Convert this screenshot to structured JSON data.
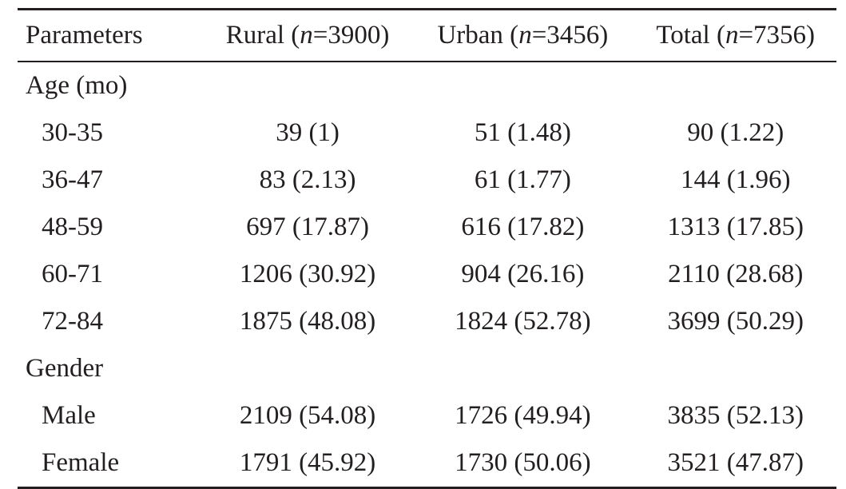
{
  "header": {
    "param": "Parameters",
    "rural": {
      "label": "Rural (",
      "n": "n",
      "value": "=3900)"
    },
    "urban": {
      "label": "Urban (",
      "n": "n",
      "value": "=3456)"
    },
    "total": {
      "label": "Total (",
      "n": "n",
      "value": "=7356)"
    }
  },
  "sections": [
    {
      "title": "Age (mo)",
      "rows": [
        [
          "30-35",
          "39 (1)",
          "51 (1.48)",
          "90 (1.22)"
        ],
        [
          "36-47",
          "83 (2.13)",
          "61 (1.77)",
          "144 (1.96)"
        ],
        [
          "48-59",
          "697 (17.87)",
          "616 (17.82)",
          "1313 (17.85)"
        ],
        [
          "60-71",
          "1206 (30.92)",
          "904 (26.16)",
          "2110 (28.68)"
        ],
        [
          "72-84",
          "1875 (48.08)",
          "1824 (52.78)",
          "3699 (50.29)"
        ]
      ]
    },
    {
      "title": "Gender",
      "rows": [
        [
          "Male",
          "2109 (54.08)",
          "1726 (49.94)",
          "3835 (52.13)"
        ],
        [
          "Female",
          "1791 (45.92)",
          "1730 (50.06)",
          "3521 (47.87)"
        ]
      ]
    }
  ]
}
